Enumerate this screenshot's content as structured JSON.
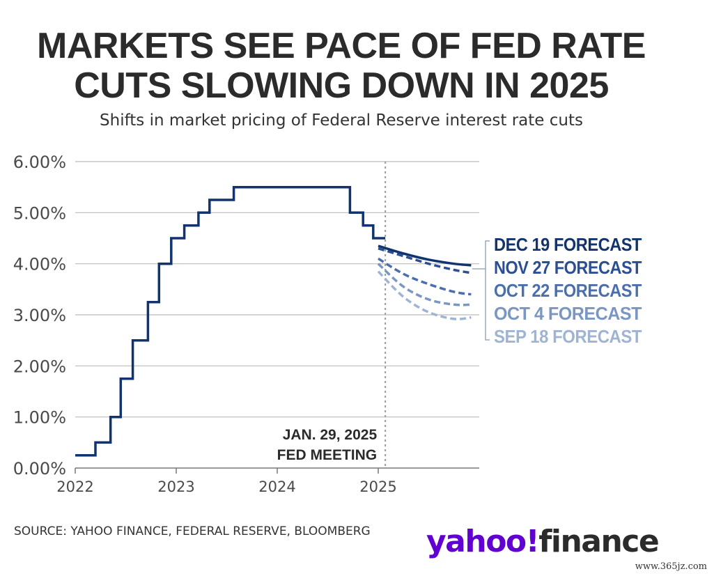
{
  "chart_data": {
    "type": "line",
    "title_lines": [
      "MARKETS SEE PACE OF FED RATE",
      "CUTS SLOWING DOWN IN 2025"
    ],
    "title": "MARKETS SEE PACE OF FED RATE CUTS SLOWING DOWN IN 2025",
    "subtitle": "Shifts in market pricing of Federal Reserve interest rate cuts",
    "xlim": [
      2022,
      2026
    ],
    "ylim": [
      0,
      6
    ],
    "x_ticks": [
      2022,
      2023,
      2024,
      2025
    ],
    "x_tick_labels": [
      "2022",
      "2023",
      "2024",
      "2025"
    ],
    "y_ticks": [
      0,
      1,
      2,
      3,
      4,
      5,
      6
    ],
    "y_tick_labels": [
      "0.00%",
      "1.00%",
      "2.00%",
      "3.00%",
      "4.00%",
      "5.00%",
      "6.00%"
    ],
    "grid": "horizontal",
    "historical": {
      "name": "Federal funds rate",
      "color": "#11336e",
      "steps": [
        {
          "x": 2022.0,
          "y": 0.25
        },
        {
          "x": 2022.2,
          "y": 0.5
        },
        {
          "x": 2022.35,
          "y": 1.0
        },
        {
          "x": 2022.45,
          "y": 1.75
        },
        {
          "x": 2022.57,
          "y": 2.5
        },
        {
          "x": 2022.72,
          "y": 3.25
        },
        {
          "x": 2022.83,
          "y": 4.0
        },
        {
          "x": 2022.95,
          "y": 4.5
        },
        {
          "x": 2023.08,
          "y": 4.75
        },
        {
          "x": 2023.22,
          "y": 5.0
        },
        {
          "x": 2023.33,
          "y": 5.25
        },
        {
          "x": 2023.57,
          "y": 5.5
        },
        {
          "x": 2024.72,
          "y": 5.0
        },
        {
          "x": 2024.85,
          "y": 4.75
        },
        {
          "x": 2024.95,
          "y": 4.5
        }
      ],
      "end_x": 2025.07
    },
    "series": [
      {
        "name": "SEP 18 FORECAST",
        "color": "#9fb4d3",
        "dash": "dashed",
        "x": [
          2025.0,
          2025.25,
          2025.5,
          2025.75,
          2025.92
        ],
        "y": [
          3.85,
          3.35,
          3.05,
          2.92,
          2.95
        ]
      },
      {
        "name": "OCT 4 FORECAST",
        "color": "#7a96c3",
        "dash": "dashed",
        "x": [
          2025.0,
          2025.25,
          2025.5,
          2025.75,
          2025.92
        ],
        "y": [
          4.0,
          3.55,
          3.3,
          3.2,
          3.2
        ]
      },
      {
        "name": "OCT 22 FORECAST",
        "color": "#4b6fad",
        "dash": "dashed",
        "x": [
          2025.0,
          2025.25,
          2025.5,
          2025.75,
          2025.92
        ],
        "y": [
          4.1,
          3.8,
          3.6,
          3.45,
          3.4
        ]
      },
      {
        "name": "NOV 27 FORECAST",
        "color": "#2a4f93",
        "dash": "dashed",
        "x": [
          2025.0,
          2025.25,
          2025.5,
          2025.75,
          2025.92
        ],
        "y": [
          4.3,
          4.15,
          4.0,
          3.88,
          3.82
        ]
      },
      {
        "name": "DEC 19 FORECAST",
        "color": "#11336e",
        "dash": "solid",
        "x": [
          2025.0,
          2025.25,
          2025.5,
          2025.75,
          2025.92
        ],
        "y": [
          4.35,
          4.2,
          4.08,
          4.0,
          3.97
        ]
      }
    ],
    "legend_order": [
      "DEC 19 FORECAST",
      "NOV 27 FORECAST",
      "OCT 22 FORECAST",
      "OCT 4 FORECAST",
      "SEP 18 FORECAST"
    ],
    "annotation": {
      "x": 2025.07,
      "lines": [
        "JAN. 29, 2025",
        "FED MEETING"
      ],
      "label": "JAN. 29, 2025 FED MEETING"
    }
  },
  "footer": {
    "source": "SOURCE: YAHOO FINANCE, FEDERAL RESERVE, BLOOMBERG",
    "logo_yahoo": "yahoo!",
    "logo_finance": "finance",
    "watermark": "www.365jz.com"
  },
  "colors": {
    "text": "#2b2b2b",
    "grid": "#bbbbbb",
    "axis": "#777777",
    "annotation_line": "#999999",
    "brand": "#6001d2"
  }
}
